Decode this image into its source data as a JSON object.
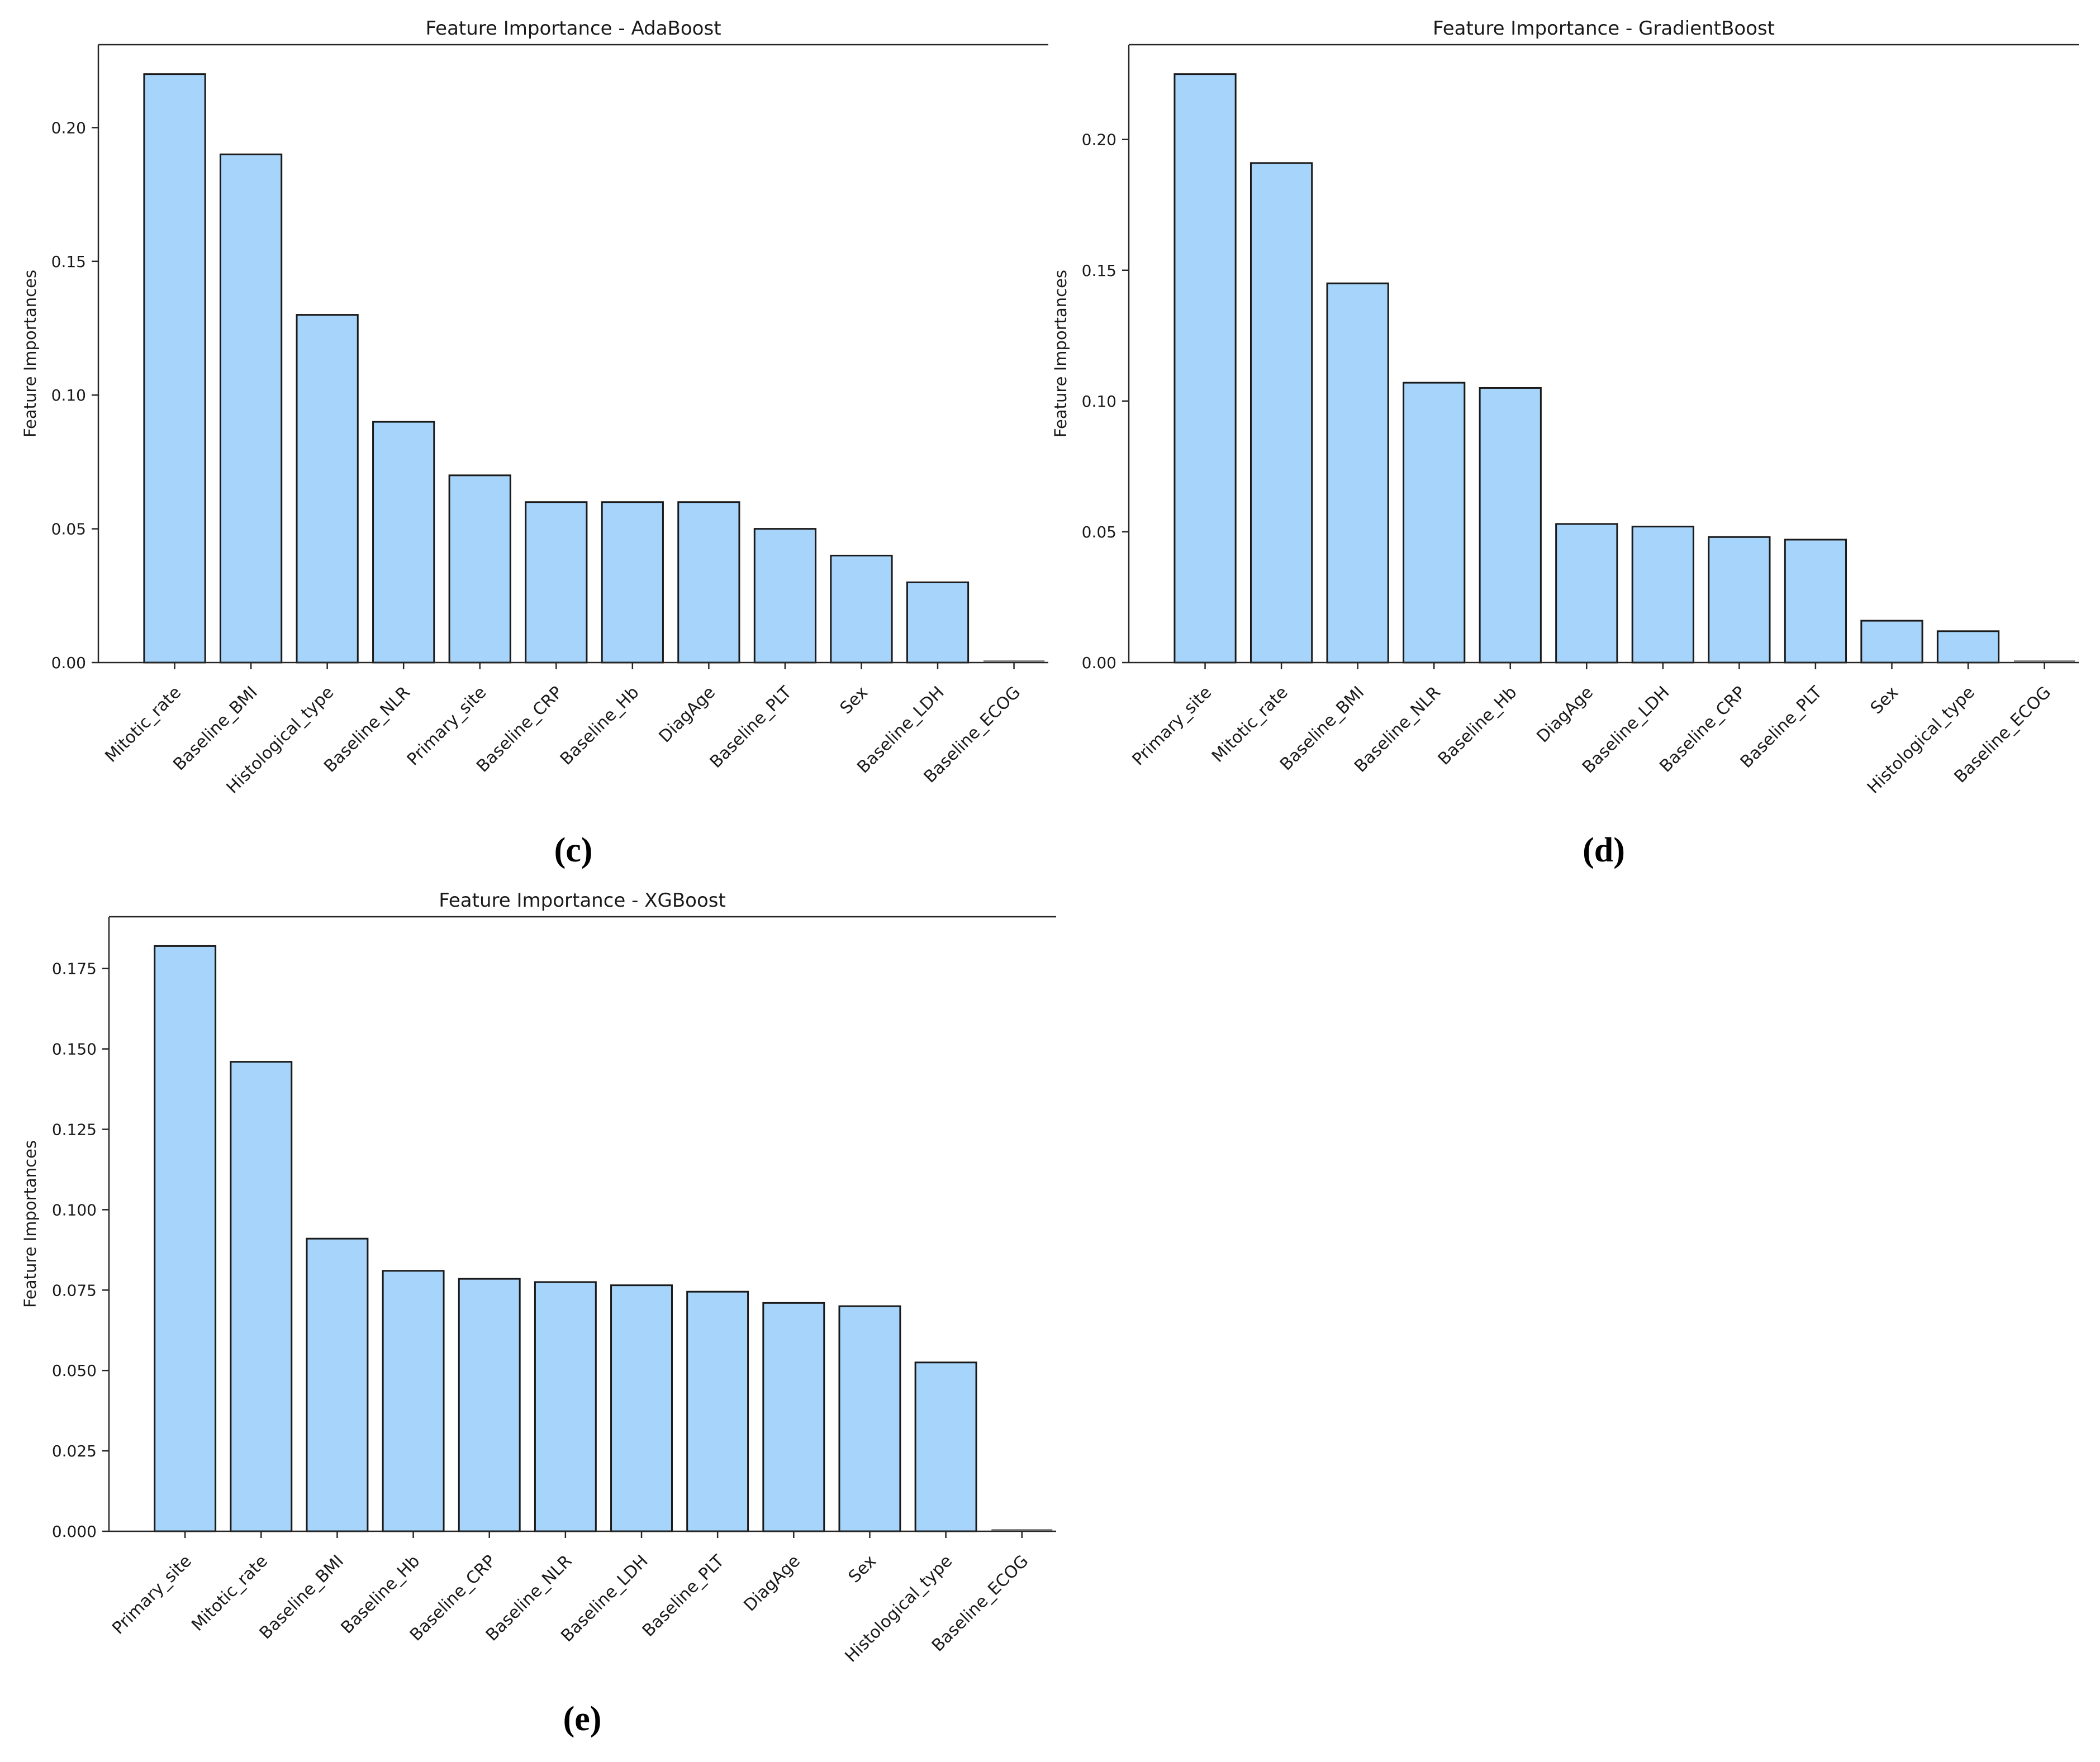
{
  "page": {
    "background": "#ffffff"
  },
  "colors": {
    "bar_fill": "#a6d4fa",
    "bar_edge": "#1a1a1a",
    "zero_bar": "#8a8a8a",
    "axis": "#262626",
    "text": "#1a1a1a"
  },
  "chart_data": [
    {
      "id": "adaboost",
      "type": "bar",
      "title": "Feature Importance - AdaBoost",
      "caption": "(c)",
      "xlabel": "",
      "ylabel": "Feature Importances",
      "grid": false,
      "legend": null,
      "categories": [
        "Mitotic_rate",
        "Baseline_BMI",
        "Histological_type",
        "Baseline_NLR",
        "Primary_site",
        "Baseline_CRP",
        "Baseline_Hb",
        "DiagAge",
        "Baseline_PLT",
        "Sex",
        "Baseline_LDH",
        "Baseline_ECOG"
      ],
      "values": [
        0.22,
        0.19,
        0.13,
        0.09,
        0.07,
        0.06,
        0.06,
        0.06,
        0.05,
        0.04,
        0.03,
        0.0
      ],
      "yticks": [
        "0.00",
        "0.05",
        "0.10",
        "0.15",
        "0.20"
      ],
      "ytick_values": [
        0,
        0.05,
        0.1,
        0.15,
        0.2
      ],
      "ylim": [
        0,
        0.231
      ]
    },
    {
      "id": "gradientboost",
      "type": "bar",
      "title": "Feature Importance - GradientBoost",
      "caption": "(d)",
      "xlabel": "",
      "ylabel": "Feature Importances",
      "grid": false,
      "legend": null,
      "categories": [
        "Primary_site",
        "Mitotic_rate",
        "Baseline_BMI",
        "Baseline_NLR",
        "Baseline_Hb",
        "DiagAge",
        "Baseline_LDH",
        "Baseline_CRP",
        "Baseline_PLT",
        "Sex",
        "Histological_type",
        "Baseline_ECOG"
      ],
      "values": [
        0.225,
        0.191,
        0.145,
        0.107,
        0.105,
        0.053,
        0.052,
        0.048,
        0.047,
        0.016,
        0.012,
        0.0
      ],
      "yticks": [
        "0.00",
        "0.05",
        "0.10",
        "0.15",
        "0.20"
      ],
      "ytick_values": [
        0,
        0.05,
        0.1,
        0.15,
        0.2
      ],
      "ylim": [
        0,
        0.23625
      ]
    },
    {
      "id": "xgboost",
      "type": "bar",
      "title": "Feature Importance - XGBoost",
      "caption": "(e)",
      "xlabel": "",
      "ylabel": "Feature Importances",
      "grid": false,
      "legend": null,
      "categories": [
        "Primary_site",
        "Mitotic_rate",
        "Baseline_BMI",
        "Baseline_Hb",
        "Baseline_CRP",
        "Baseline_NLR",
        "Baseline_LDH",
        "Baseline_PLT",
        "DiagAge",
        "Sex",
        "Histological_type",
        "Baseline_ECOG"
      ],
      "values": [
        0.182,
        0.146,
        0.091,
        0.081,
        0.0785,
        0.0775,
        0.0765,
        0.0745,
        0.071,
        0.07,
        0.0525,
        0.0
      ],
      "yticks": [
        "0.000",
        "0.025",
        "0.050",
        "0.075",
        "0.100",
        "0.125",
        "0.150",
        "0.175"
      ],
      "ytick_values": [
        0,
        0.025,
        0.05,
        0.075,
        0.1,
        0.125,
        0.15,
        0.175
      ],
      "ylim": [
        0,
        0.1911
      ]
    }
  ]
}
